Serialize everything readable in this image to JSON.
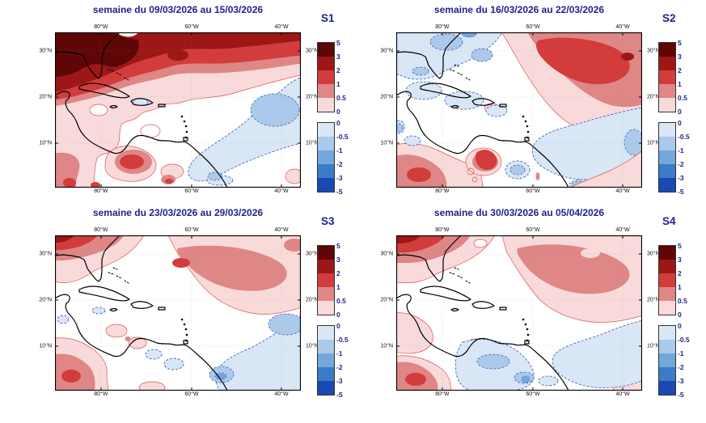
{
  "figure": {
    "background": "#ffffff",
    "kind": "weekly anomaly forecast maps, Caribbean / tropical Atlantic"
  },
  "palette": {
    "title_color": "#21218e",
    "axis_label_color": "#111111",
    "coast_color": "#000000",
    "pos_contour_color": "#e05050",
    "neg_contour_color": "#3355bb",
    "red_levels": [
      "#5f0606",
      "#9e1717",
      "#d23c3c",
      "#df8686",
      "#f9dada"
    ],
    "blue_levels": [
      "#d9e6f5",
      "#abc9ea",
      "#74a7dc",
      "#3b7cc8",
      "#1a49b4"
    ]
  },
  "colorbar": {
    "positive_labels": [
      "5",
      "3",
      "2",
      "1",
      "0.5",
      "0"
    ],
    "negative_labels": [
      "0",
      "-0.5",
      "-1",
      "-2",
      "-3",
      "-5"
    ]
  },
  "axes": {
    "lon_ticks": [
      "80°W",
      "60°W",
      "40°W"
    ],
    "lat_ticks": [
      "30°N",
      "20°N",
      "10°N"
    ]
  },
  "panels": [
    {
      "id": "S1",
      "title": "semaine du 09/03/2026 au 15/03/2026"
    },
    {
      "id": "S2",
      "title": "semaine du 16/03/2026 au 22/03/2026"
    },
    {
      "id": "S3",
      "title": "semaine du 23/03/2026 au 29/03/2026"
    },
    {
      "id": "S4",
      "title": "semaine du 30/03/2026 au 05/04/2026"
    }
  ],
  "chart_data": [
    {
      "type": "heatmap",
      "title": "semaine du 09/03/2026 au 15/03/2026",
      "panel_label": "S1",
      "x_ticks": [
        "80°W",
        "60°W",
        "40°W"
      ],
      "y_ticks": [
        "30°N",
        "20°N",
        "10°N"
      ],
      "value_levels": [
        -5,
        -3,
        -2,
        -1,
        -0.5,
        0,
        0.5,
        1,
        2,
        3,
        5
      ],
      "features": [
        {
          "area": "northwest corner (US southeast coast / Florida)",
          "value": "+3 to +5"
        },
        {
          "area": "subtropical Atlantic band north of 22°N, full width",
          "value": "+1 to +3"
        },
        {
          "area": "Gulf of Mexico and western Caribbean",
          "value": "0 to +1"
        },
        {
          "area": "central tropical Atlantic 35-55°W, 5-20°N (diagonal band)",
          "value": "-0.5 to -1"
        },
        {
          "area": "southern Caribbean near 75°W 10°N",
          "value": "+1 to +2"
        },
        {
          "area": "eastern Caribbean / Lesser Antilles",
          "value": "near 0"
        }
      ]
    },
    {
      "type": "heatmap",
      "title": "semaine du 16/03/2026 au 22/03/2026",
      "panel_label": "S2",
      "x_ticks": [
        "80°W",
        "60°W",
        "40°W"
      ],
      "y_ticks": [
        "30°N",
        "20°N",
        "10°N"
      ],
      "value_levels": [
        -5,
        -3,
        -2,
        -1,
        -0.5,
        0,
        0.5,
        1,
        2,
        3,
        5
      ],
      "features": [
        {
          "area": "Florida, Bahamas and Gulf of Mexico",
          "value": "-0.5 to -2"
        },
        {
          "area": "subtropical central Atlantic 40-65°W, 18-30°N (large blob)",
          "value": "+1 to +2 with small +2 to +3 core"
        },
        {
          "area": "tropical Atlantic south of 15°N",
          "value": "-0.5 to -1"
        },
        {
          "area": "Caribbean basin",
          "value": "-0.5 to 0"
        },
        {
          "area": "southwest corner near 5°N (eastern Pacific side)",
          "value": "+1 to +2"
        },
        {
          "area": "Colombia/Venezuela border near 73°W 10°N",
          "value": "+1 to +2"
        }
      ]
    },
    {
      "type": "heatmap",
      "title": "semaine du 23/03/2026 au 29/03/2026",
      "panel_label": "S3",
      "x_ticks": [
        "80°W",
        "60°W",
        "40°W"
      ],
      "y_ticks": [
        "30°N",
        "20°N",
        "10°N"
      ],
      "value_levels": [
        -5,
        -3,
        -2,
        -1,
        -0.5,
        0,
        0.5,
        1,
        2,
        3,
        5
      ],
      "features": [
        {
          "area": "northwest corner (US southeast coast)",
          "value": "+2 to +3"
        },
        {
          "area": "subtropical Atlantic blob 45-70°W, 22-30°N",
          "value": "+0.5 to +1 with small +1 to +2 core"
        },
        {
          "area": "southeast tropical Atlantic (diagonal band)",
          "value": "-0.5 to -1, local -1 to -2 near 55°W 8°N"
        },
        {
          "area": "Caribbean basin",
          "value": "near 0"
        },
        {
          "area": "southwest corner",
          "value": "+0.5 to +2"
        }
      ]
    },
    {
      "type": "heatmap",
      "title": "semaine du 30/03/2026 au 05/04/2026",
      "panel_label": "S4",
      "x_ticks": [
        "80°W",
        "60°W",
        "40°W"
      ],
      "y_ticks": [
        "30°N",
        "20°N",
        "10°N"
      ],
      "value_levels": [
        -5,
        -3,
        -2,
        -1,
        -0.5,
        0,
        0.5,
        1,
        2,
        3,
        5
      ],
      "features": [
        {
          "area": "northwest corner (US southeast coast)",
          "value": "+2 to +3"
        },
        {
          "area": "subtropical Atlantic band 20-28°N (broad blob)",
          "value": "+0.5 to +1"
        },
        {
          "area": "southern Caribbean / offshore Venezuela",
          "value": "-0.5 to -1, local -1 to -2"
        },
        {
          "area": "tropical Atlantic east of 50°W, 10-18°N",
          "value": "-0.5"
        },
        {
          "area": "southwest corner and western Caribbean coast",
          "value": "+0.5 to +2"
        }
      ]
    }
  ]
}
